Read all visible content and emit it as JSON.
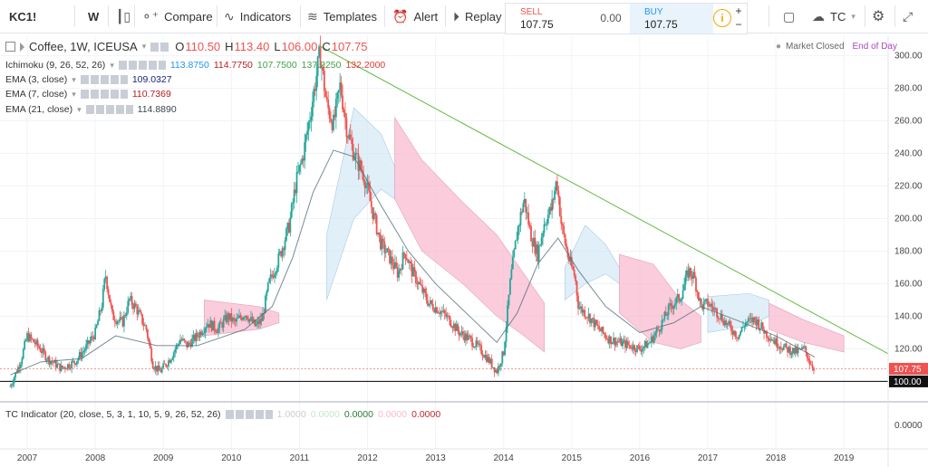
{
  "toolbar": {
    "symbol": "KC1!",
    "interval": "W",
    "compare": "Compare",
    "indicators": "Indicators",
    "templates": "Templates",
    "alert": "Alert",
    "replay": "Replay",
    "sell_label": "SELL",
    "sell_price": "107.75",
    "spread": "0.00",
    "buy_label": "BUY",
    "buy_price": "107.75",
    "plus": "+",
    "minus": "−",
    "account": "TC"
  },
  "legend": {
    "title": "Coffee, 1W, ICEUSA",
    "o_label": "O",
    "o": "110.50",
    "h_label": "H",
    "h": "113.40",
    "l_label": "L",
    "l": "106.00",
    "c_label": "C",
    "c": "107.75",
    "market_status": "Market Closed",
    "end_of_day": "End of Day",
    "ichimoku": {
      "label": "Ichimoku (9, 26, 52, 26)",
      "v1": "113.8750",
      "v2": "114.7750",
      "v3": "107.7500",
      "v4": "137.2250",
      "v5": "132.2000"
    },
    "ema3": {
      "label": "EMA (3, close)",
      "value": "109.0327"
    },
    "ema7": {
      "label": "EMA (7, close)",
      "value": "110.7369"
    },
    "ema21": {
      "label": "EMA (21, close)",
      "value": "114.8890"
    },
    "tc_indicator": {
      "label": "TC Indicator (20, close, 5, 3, 1, 10, 5, 9, 26, 52, 26)",
      "v1": "1.0000",
      "v2": "0.0000",
      "v3": "0.0000",
      "v4": "0.0000",
      "v5": "0.0000"
    }
  },
  "colors": {
    "up": "#26a69a",
    "down": "#ef5350",
    "trendline": "#66bb44",
    "kumo_bear": "#f8bbd0",
    "kumo_bull": "#d6e9f5",
    "price_tag": "#ef5350"
  },
  "chart_data": {
    "type": "candlestick",
    "title": "Coffee, 1W, ICEUSA",
    "ylim": [
      88,
      312
    ],
    "y_ticks": [
      "300.00",
      "280.00",
      "260.00",
      "240.00",
      "220.00",
      "200.00",
      "180.00",
      "160.00",
      "140.00",
      "120.00"
    ],
    "x_ticks": [
      "2007",
      "2008",
      "2009",
      "2010",
      "2011",
      "2012",
      "2013",
      "2014",
      "2015",
      "2016",
      "2017",
      "2018",
      "2019"
    ],
    "x_tick_years": [
      2007,
      2008,
      2009,
      2010,
      2011,
      2012,
      2013,
      2014,
      2015,
      2016,
      2017,
      2018,
      2019
    ],
    "last_price": "107.75",
    "support_level": "100.00",
    "support_value": 100,
    "trendline": [
      {
        "x": 2011.3,
        "y": 306
      },
      {
        "x": 2019.65,
        "y": 117
      }
    ],
    "price_path": [
      [
        2006.75,
        97
      ],
      [
        2006.9,
        112
      ],
      [
        2007.0,
        128
      ],
      [
        2007.15,
        122
      ],
      [
        2007.3,
        114
      ],
      [
        2007.5,
        108
      ],
      [
        2007.7,
        112
      ],
      [
        2007.85,
        120
      ],
      [
        2008.0,
        130
      ],
      [
        2008.1,
        148
      ],
      [
        2008.15,
        166
      ],
      [
        2008.25,
        140
      ],
      [
        2008.4,
        136
      ],
      [
        2008.5,
        150
      ],
      [
        2008.6,
        145
      ],
      [
        2008.75,
        132
      ],
      [
        2008.85,
        110
      ],
      [
        2008.95,
        106
      ],
      [
        2009.1,
        114
      ],
      [
        2009.25,
        126
      ],
      [
        2009.35,
        122
      ],
      [
        2009.5,
        128
      ],
      [
        2009.65,
        136
      ],
      [
        2009.8,
        132
      ],
      [
        2009.95,
        140
      ],
      [
        2010.05,
        136
      ],
      [
        2010.2,
        142
      ],
      [
        2010.35,
        134
      ],
      [
        2010.45,
        138
      ],
      [
        2010.55,
        160
      ],
      [
        2010.7,
        176
      ],
      [
        2010.85,
        196
      ],
      [
        2010.95,
        222
      ],
      [
        2011.05,
        238
      ],
      [
        2011.15,
        262
      ],
      [
        2011.25,
        288
      ],
      [
        2011.3,
        302
      ],
      [
        2011.4,
        270
      ],
      [
        2011.5,
        258
      ],
      [
        2011.6,
        282
      ],
      [
        2011.7,
        254
      ],
      [
        2011.8,
        240
      ],
      [
        2011.95,
        226
      ],
      [
        2012.1,
        200
      ],
      [
        2012.2,
        184
      ],
      [
        2012.3,
        178
      ],
      [
        2012.45,
        166
      ],
      [
        2012.55,
        180
      ],
      [
        2012.65,
        168
      ],
      [
        2012.75,
        160
      ],
      [
        2012.9,
        148
      ],
      [
        2013.05,
        144
      ],
      [
        2013.2,
        138
      ],
      [
        2013.35,
        130
      ],
      [
        2013.5,
        126
      ],
      [
        2013.65,
        120
      ],
      [
        2013.8,
        112
      ],
      [
        2013.9,
        106
      ],
      [
        2014.0,
        118
      ],
      [
        2014.1,
        162
      ],
      [
        2014.2,
        192
      ],
      [
        2014.3,
        212
      ],
      [
        2014.4,
        190
      ],
      [
        2014.5,
        178
      ],
      [
        2014.6,
        198
      ],
      [
        2014.7,
        206
      ],
      [
        2014.78,
        224
      ],
      [
        2014.85,
        196
      ],
      [
        2014.95,
        176
      ],
      [
        2015.05,
        164
      ],
      [
        2015.1,
        146
      ],
      [
        2015.25,
        140
      ],
      [
        2015.4,
        132
      ],
      [
        2015.55,
        126
      ],
      [
        2015.7,
        124
      ],
      [
        2015.85,
        122
      ],
      [
        2016.0,
        120
      ],
      [
        2016.15,
        124
      ],
      [
        2016.3,
        134
      ],
      [
        2016.45,
        146
      ],
      [
        2016.6,
        152
      ],
      [
        2016.72,
        168
      ],
      [
        2016.8,
        164
      ],
      [
        2016.9,
        146
      ],
      [
        2017.0,
        148
      ],
      [
        2017.15,
        142
      ],
      [
        2017.3,
        134
      ],
      [
        2017.45,
        128
      ],
      [
        2017.55,
        136
      ],
      [
        2017.7,
        138
      ],
      [
        2017.85,
        130
      ],
      [
        2018.0,
        124
      ],
      [
        2018.15,
        120
      ],
      [
        2018.3,
        118
      ],
      [
        2018.42,
        120
      ],
      [
        2018.5,
        112
      ],
      [
        2018.57,
        107.75
      ]
    ],
    "ema_slow_path": [
      [
        2006.75,
        104
      ],
      [
        2007.2,
        112
      ],
      [
        2007.8,
        114
      ],
      [
        2008.3,
        128
      ],
      [
        2008.9,
        122
      ],
      [
        2009.5,
        122
      ],
      [
        2010.2,
        132
      ],
      [
        2010.6,
        146
      ],
      [
        2010.9,
        176
      ],
      [
        2011.2,
        216
      ],
      [
        2011.5,
        242
      ],
      [
        2011.8,
        238
      ],
      [
        2012.2,
        208
      ],
      [
        2012.6,
        180
      ],
      [
        2013.0,
        160
      ],
      [
        2013.5,
        140
      ],
      [
        2013.9,
        124
      ],
      [
        2014.2,
        142
      ],
      [
        2014.5,
        172
      ],
      [
        2014.8,
        188
      ],
      [
        2015.1,
        168
      ],
      [
        2015.5,
        146
      ],
      [
        2016.0,
        130
      ],
      [
        2016.5,
        136
      ],
      [
        2016.9,
        146
      ],
      [
        2017.4,
        138
      ],
      [
        2018.0,
        128
      ],
      [
        2018.57,
        115
      ]
    ],
    "kumo": [
      {
        "kind": "bear",
        "top": [
          [
            2009.6,
            150
          ],
          [
            2010.4,
            146
          ],
          [
            2010.7,
            142
          ]
        ],
        "bottom": [
          [
            2009.6,
            128
          ],
          [
            2010.4,
            132
          ],
          [
            2010.7,
            136
          ]
        ]
      },
      {
        "kind": "bull",
        "top": [
          [
            2011.4,
            190
          ],
          [
            2011.8,
            268
          ],
          [
            2012.2,
            252
          ],
          [
            2012.4,
            232
          ]
        ],
        "bottom": [
          [
            2011.4,
            150
          ],
          [
            2011.8,
            200
          ],
          [
            2012.2,
            218
          ],
          [
            2012.4,
            212
          ]
        ]
      },
      {
        "kind": "bear",
        "top": [
          [
            2012.4,
            262
          ],
          [
            2012.8,
            236
          ],
          [
            2013.4,
            210
          ],
          [
            2013.9,
            190
          ],
          [
            2014.3,
            166
          ],
          [
            2014.6,
            148
          ]
        ],
        "bottom": [
          [
            2012.4,
            212
          ],
          [
            2012.8,
            180
          ],
          [
            2013.4,
            160
          ],
          [
            2013.9,
            140
          ],
          [
            2014.3,
            128
          ],
          [
            2014.6,
            118
          ]
        ]
      },
      {
        "kind": "bull",
        "top": [
          [
            2014.9,
            170
          ],
          [
            2015.2,
            196
          ],
          [
            2015.5,
            184
          ],
          [
            2015.7,
            170
          ]
        ],
        "bottom": [
          [
            2014.9,
            150
          ],
          [
            2015.2,
            160
          ],
          [
            2015.5,
            166
          ],
          [
            2015.7,
            160
          ]
        ]
      },
      {
        "kind": "bear",
        "top": [
          [
            2015.7,
            178
          ],
          [
            2016.2,
            172
          ],
          [
            2016.6,
            150
          ],
          [
            2016.9,
            140
          ]
        ],
        "bottom": [
          [
            2015.7,
            142
          ],
          [
            2016.2,
            124
          ],
          [
            2016.6,
            120
          ],
          [
            2016.9,
            124
          ]
        ]
      },
      {
        "kind": "bull",
        "top": [
          [
            2017.0,
            152
          ],
          [
            2017.6,
            154
          ],
          [
            2017.9,
            150
          ]
        ],
        "bottom": [
          [
            2017.0,
            130
          ],
          [
            2017.6,
            134
          ],
          [
            2017.9,
            140
          ]
        ]
      },
      {
        "kind": "bear",
        "top": [
          [
            2017.9,
            148
          ],
          [
            2018.4,
            138
          ],
          [
            2019.0,
            128
          ]
        ],
        "bottom": [
          [
            2017.9,
            132
          ],
          [
            2018.4,
            124
          ],
          [
            2019.0,
            118
          ]
        ]
      }
    ]
  }
}
